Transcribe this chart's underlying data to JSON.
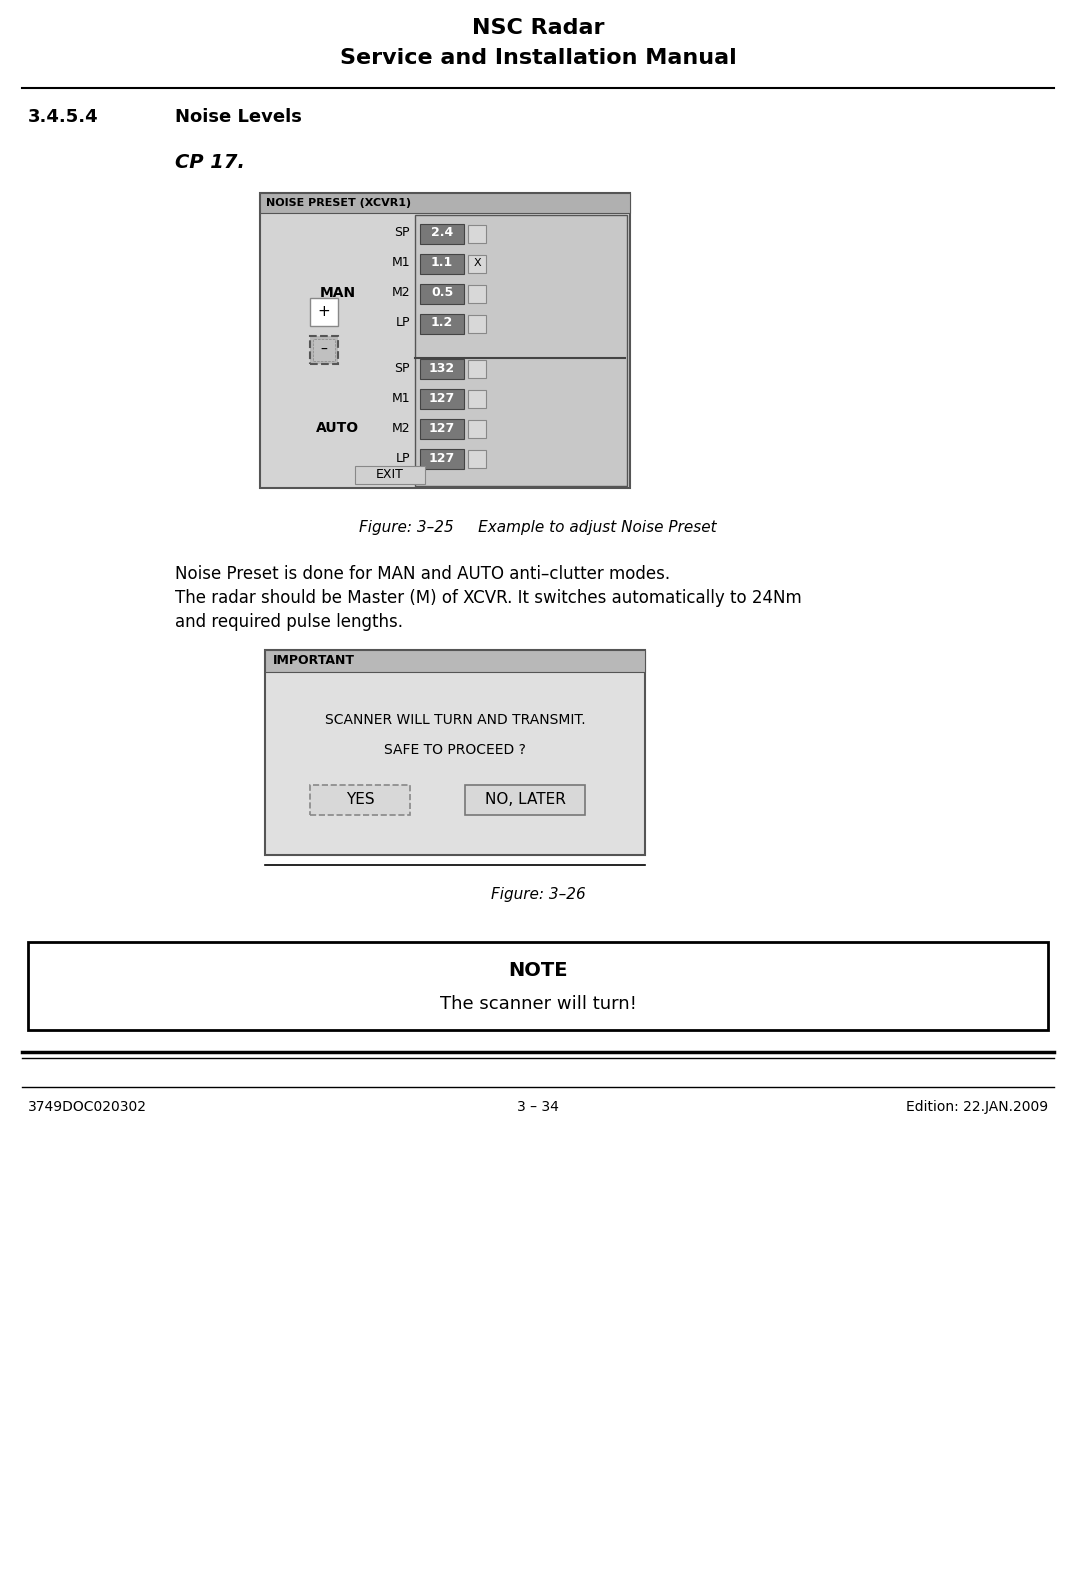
{
  "title1": "NSC Radar",
  "title2": "Service and Installation Manual",
  "section": "3.4.5.4",
  "section_title": "Noise Levels",
  "cp_label": "CP 17.",
  "fig25_caption": "Figure: 3–25     Example to adjust Noise Preset",
  "fig26_caption": "Figure: 3–26",
  "body_text1": "Noise Preset is done for MAN and AUTO anti–clutter modes.",
  "body_text2": "The radar should be Master (M) of XCVR. It switches automatically to 24Nm",
  "body_text3": "and required pulse lengths.",
  "note_title": "NOTE",
  "note_body": "The scanner will turn!",
  "footer_left": "3749DOC020302",
  "footer_center": "3 – 34",
  "footer_right": "Edition: 22.JAN.2009",
  "bg_color": "#ffffff",
  "text_color": "#000000",
  "noise_preset_title": "NOISE PRESET (XCVR1)",
  "important_title": "IMPORTANT",
  "important_line1": "SCANNER WILL TURN AND TRANSMIT.",
  "important_line2": "SAFE TO PROCEED ?",
  "yes_btn": "YES",
  "no_btn": "NO, LATER",
  "val_box_color": "#808080",
  "val_box_color_auto": "#808080",
  "panel_bg": "#d8d8d8",
  "panel_bg2": "#e8e8e8"
}
